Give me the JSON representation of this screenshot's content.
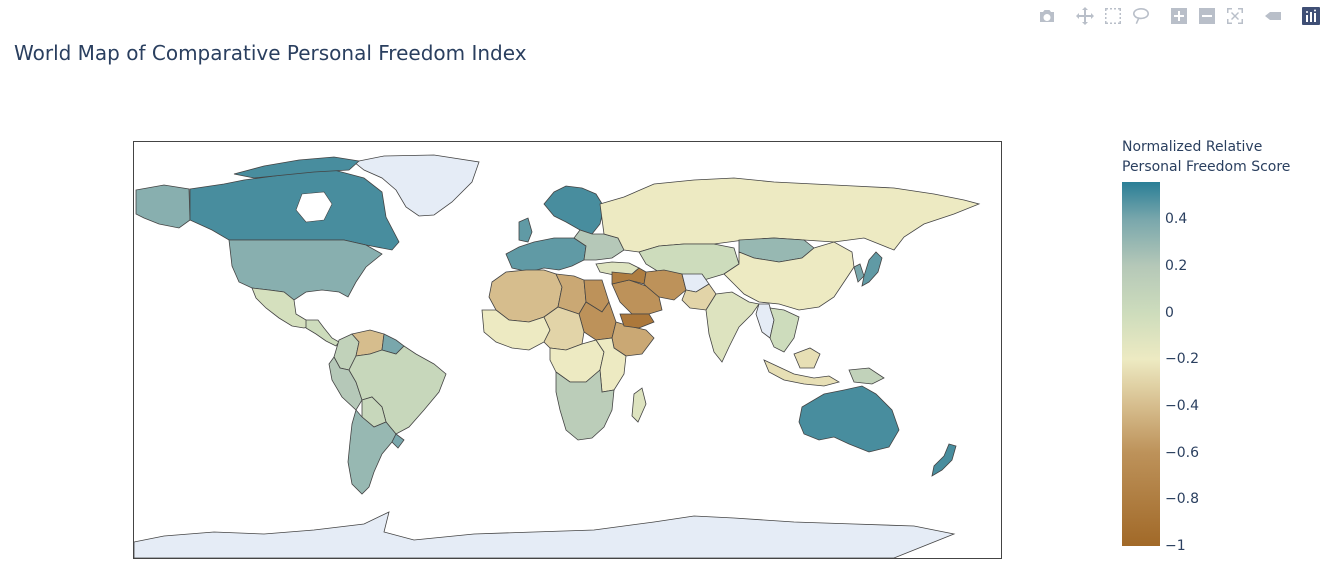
{
  "title": "World Map of Comparative Personal Freedom Index",
  "modebar": {
    "buttons": [
      {
        "name": "camera-icon"
      },
      {
        "name": "pan-icon"
      },
      {
        "name": "box-select-icon"
      },
      {
        "name": "lasso-select-icon"
      },
      {
        "name": "zoom-in-icon"
      },
      {
        "name": "zoom-out-icon"
      },
      {
        "name": "reset-view-icon"
      },
      {
        "name": "toggle-hover-icon"
      },
      {
        "name": "plotly-logo-icon"
      }
    ]
  },
  "colorbar": {
    "title_lines": [
      "Normalized Relative",
      "Personal Freedom Score"
    ],
    "range": [
      -1,
      0.56
    ],
    "ticks": [
      {
        "value": 0.4,
        "label": "0.4"
      },
      {
        "value": 0.2,
        "label": "0.2"
      },
      {
        "value": 0,
        "label": "0"
      },
      {
        "value": -0.2,
        "label": "−0.2"
      },
      {
        "value": -0.4,
        "label": "−0.4"
      },
      {
        "value": -0.6,
        "label": "−0.6"
      },
      {
        "value": -0.8,
        "label": "−0.8"
      },
      {
        "value": -1,
        "label": "−1"
      }
    ],
    "colorscale": [
      [
        -1,
        "#a16928"
      ],
      [
        -0.6,
        "#bd925a"
      ],
      [
        -0.4,
        "#d6bd8d"
      ],
      [
        -0.2,
        "#edeac2"
      ],
      [
        0,
        "#cddcbc"
      ],
      [
        0.2,
        "#b5c8b8"
      ],
      [
        0.4,
        "#79a7ac"
      ],
      [
        0.56,
        "#2a7e96"
      ]
    ]
  },
  "chart_data": {
    "type": "choropleth",
    "title": "World Map of Comparative Personal Freedom Index",
    "projection": "equirectangular",
    "colorbar_title": "Normalized Relative Personal Freedom Score",
    "zrange": [
      -1,
      0.56
    ],
    "no_data_color": "#e5ecf6",
    "regions": [
      {
        "name": "Canada",
        "value": 0.5
      },
      {
        "name": "Alaska",
        "value": 0.35
      },
      {
        "name": "United States",
        "value": 0.35
      },
      {
        "name": "Greenland",
        "value": null
      },
      {
        "name": "Mexico",
        "value": -0.05
      },
      {
        "name": "Central America",
        "value": 0.0
      },
      {
        "name": "Colombia",
        "value": 0.1
      },
      {
        "name": "Venezuela",
        "value": -0.4
      },
      {
        "name": "Guyana",
        "value": 0.4
      },
      {
        "name": "Ecuador",
        "value": 0.2
      },
      {
        "name": "Peru",
        "value": 0.2
      },
      {
        "name": "Brazil",
        "value": 0.05
      },
      {
        "name": "Bolivia",
        "value": 0.05
      },
      {
        "name": "Paraguay",
        "value": 0.05
      },
      {
        "name": "Chile",
        "value": 0.3
      },
      {
        "name": "Argentina",
        "value": 0.3
      },
      {
        "name": "Uruguay",
        "value": 0.4
      },
      {
        "name": "Northern Europe",
        "value": 0.5
      },
      {
        "name": "Western Europe",
        "value": 0.45
      },
      {
        "name": "Eastern Europe",
        "value": 0.2
      },
      {
        "name": "Russia",
        "value": -0.2
      },
      {
        "name": "Central Asia",
        "value": 0.0
      },
      {
        "name": "Mongolia",
        "value": 0.3
      },
      {
        "name": "China",
        "value": -0.2
      },
      {
        "name": "Japan",
        "value": 0.45
      },
      {
        "name": "South Korea",
        "value": 0.4
      },
      {
        "name": "North Africa",
        "value": -0.4
      },
      {
        "name": "Libya",
        "value": -0.5
      },
      {
        "name": "Egypt",
        "value": -0.6
      },
      {
        "name": "Sudan",
        "value": -0.6
      },
      {
        "name": "West Africa",
        "value": -0.2
      },
      {
        "name": "Central Africa",
        "value": -0.3
      },
      {
        "name": "DR Congo",
        "value": -0.2
      },
      {
        "name": "Ethiopia",
        "value": -0.5
      },
      {
        "name": "East Africa",
        "value": -0.2
      },
      {
        "name": "Southern Africa",
        "value": 0.15
      },
      {
        "name": "Madagascar",
        "value": -0.1
      },
      {
        "name": "Saudi Arabia",
        "value": -0.6
      },
      {
        "name": "Yemen",
        "value": -0.85
      },
      {
        "name": "Syria / Iraq",
        "value": -0.8
      },
      {
        "name": "Iran",
        "value": -0.6
      },
      {
        "name": "Turkey",
        "value": -0.1
      },
      {
        "name": "Afghanistan",
        "value": null
      },
      {
        "name": "Pakistan",
        "value": -0.3
      },
      {
        "name": "India",
        "value": -0.1
      },
      {
        "name": "Myanmar",
        "value": null
      },
      {
        "name": "Southeast Asia",
        "value": 0.0
      },
      {
        "name": "Indonesia",
        "value": -0.25
      },
      {
        "name": "Papua New Guinea",
        "value": 0.1
      },
      {
        "name": "Australia",
        "value": 0.5
      },
      {
        "name": "New Zealand",
        "value": 0.5
      },
      {
        "name": "Antarctica",
        "value": null
      }
    ]
  }
}
